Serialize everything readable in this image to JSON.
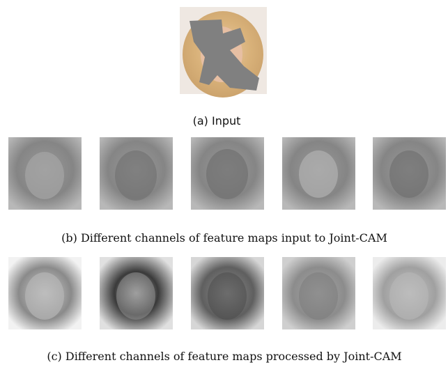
{
  "figure": {
    "captions": [
      "(a) Input",
      "(b) Different channels of feature maps input to Joint-CAM",
      "(c) Different channels of feature maps processed by Joint-CAM"
    ]
  }
}
